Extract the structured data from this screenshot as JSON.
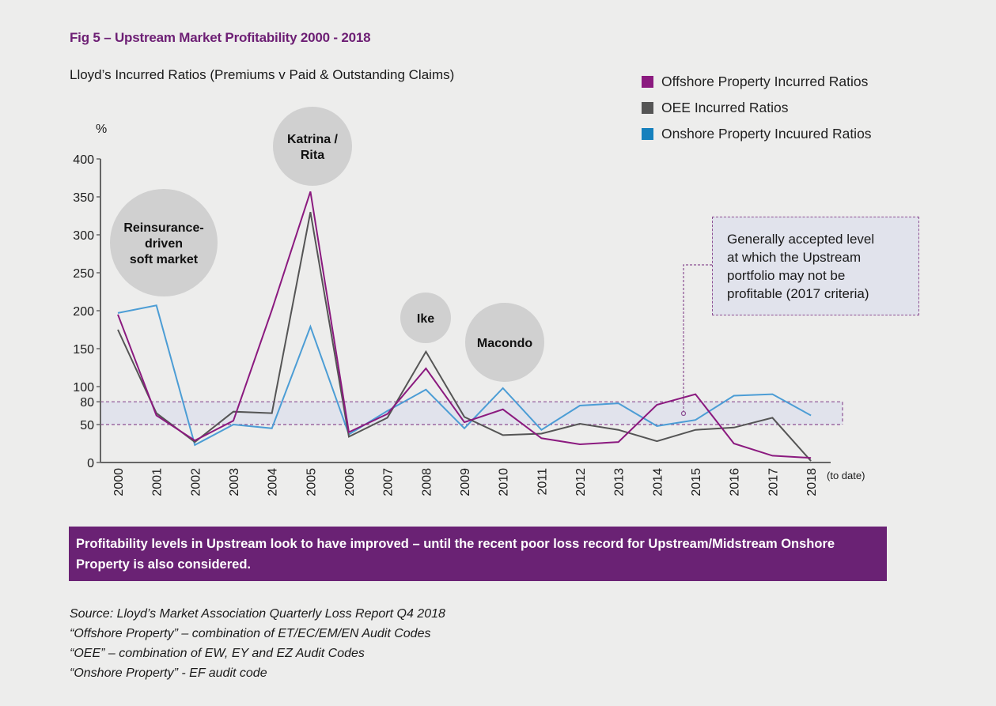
{
  "header": {
    "fig_title": "Fig 5 – Upstream Market Profitability  2000 - 2018",
    "subtitle": "Lloyd’s Incurred Ratios (Premiums v  Paid & Outstanding Claims)"
  },
  "legend": [
    {
      "label": "Offshore Property Incurred Ratios",
      "color": "#8b1a7f"
    },
    {
      "label": "OEE Incurred Ratios",
      "color": "#555555"
    },
    {
      "label": "Onshore Property Incuured Ratios",
      "color": "#1580bd"
    }
  ],
  "chart_data": {
    "type": "line",
    "title": "Fig 5 – Upstream Market Profitability  2000 - 2018",
    "subtitle": "Lloyd’s Incurred Ratios (Premiums v  Paid & Outstanding Claims)",
    "xlabel": "",
    "ylabel": "%",
    "ylim": [
      0,
      400
    ],
    "yticks": [
      0,
      50,
      80,
      100,
      150,
      200,
      250,
      300,
      350,
      400
    ],
    "categories": [
      "2000",
      "2001",
      "2002",
      "2003",
      "2004",
      "2005",
      "2006",
      "2007",
      "2008",
      "2009",
      "2010",
      "2011",
      "2012",
      "2013",
      "2014",
      "2015",
      "2016",
      "2017",
      "2018"
    ],
    "x_suffix_label": "(to date)",
    "legend_position": "top-right",
    "grid": false,
    "series": [
      {
        "name": "Offshore Property Incurred Ratios",
        "color": "#8b1a7f",
        "values": [
          195,
          62,
          29,
          55,
          201,
          357,
          40,
          64,
          124,
          53,
          70,
          32,
          24,
          27,
          76,
          90,
          25,
          9,
          6
        ]
      },
      {
        "name": "OEE Incurred Ratios",
        "color": "#555555",
        "values": [
          175,
          65,
          27,
          67,
          65,
          330,
          34,
          59,
          146,
          60,
          36,
          38,
          51,
          43,
          28,
          43,
          46,
          59,
          2
        ]
      },
      {
        "name": "Onshore Property Incuured Ratios",
        "color": "#4c9dd5",
        "values": [
          197,
          207,
          23,
          50,
          45,
          179,
          37,
          68,
          96,
          45,
          98,
          43,
          75,
          78,
          48,
          56,
          88,
          90,
          62
        ]
      }
    ],
    "threshold_band": {
      "low": 50,
      "high": 80
    },
    "annotations": [
      {
        "text": "Reinsurance-\ndriven\nsoft market"
      },
      {
        "text": "Katrina /\nRita"
      },
      {
        "text": "Ike"
      },
      {
        "text": "Macondo"
      }
    ]
  },
  "callout": {
    "lines": [
      "Generally accepted level",
      "at which the Upstream",
      "portfolio may not be",
      "profitable (2017 criteria)"
    ]
  },
  "banner": {
    "text": "Profitability levels in Upstream look to have improved – until the recent poor loss record for Upstream/Midstream Onshore Property is also considered."
  },
  "sources": [
    "Source: Lloyd’s Market Association Quarterly Loss Report Q4 2018",
    "“Offshore Property” – combination of ET/EC/EM/EN Audit Codes",
    "“OEE” – combination of EW, EY and EZ Audit Codes",
    "“Onshore Property” - EF audit code"
  ]
}
